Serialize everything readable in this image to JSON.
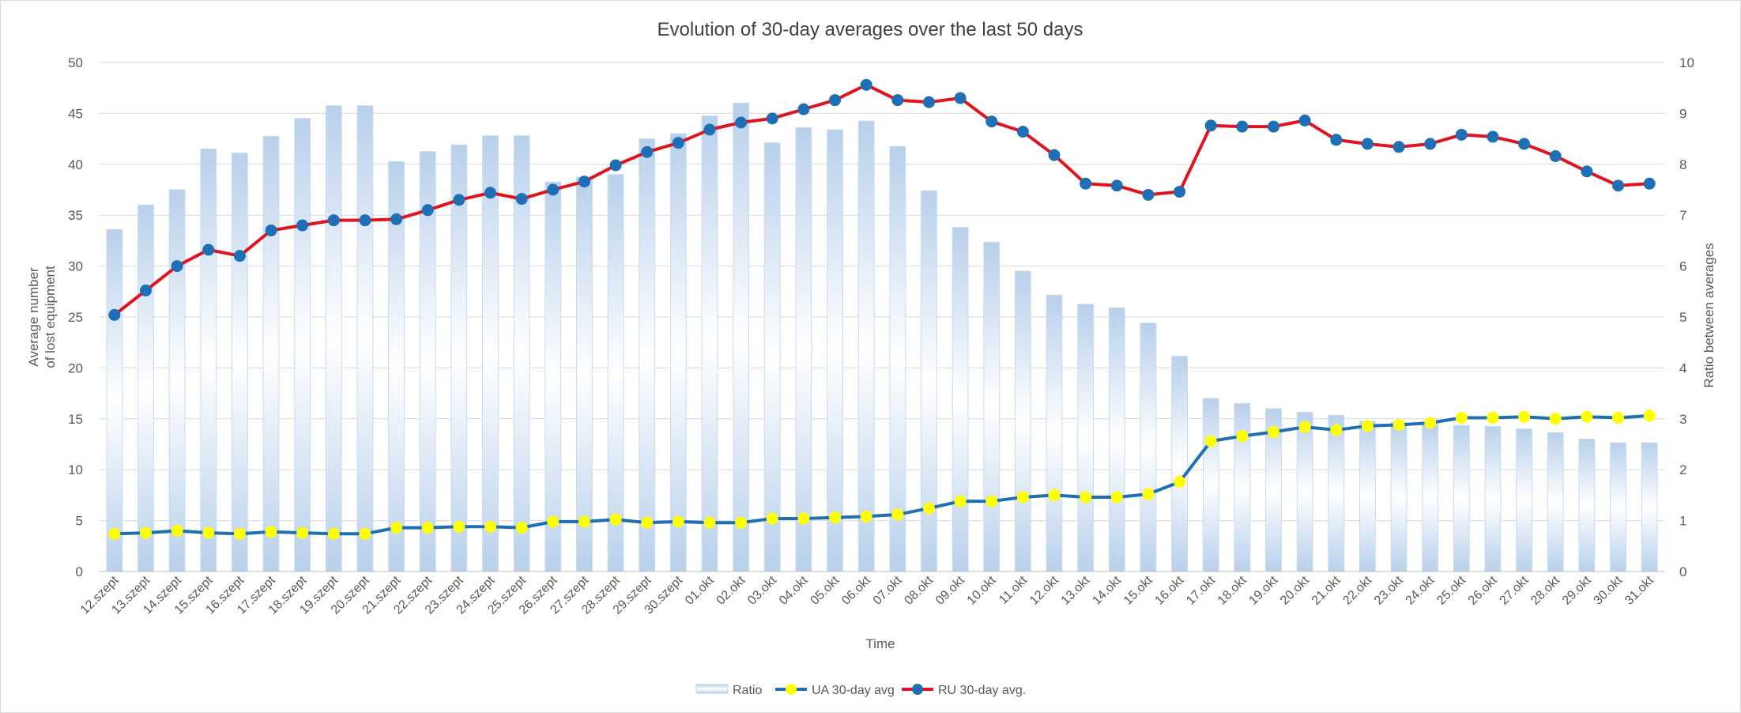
{
  "chart_data": {
    "type": "bar",
    "title": "Evolution of 30-day averages over the last 50 days",
    "xlabel": "Time",
    "ylabel": "Average number of lost equipment",
    "ylabel_lines": [
      "Average number",
      "of lost equipment"
    ],
    "y2label": "Ratio between averages",
    "ylim": [
      0,
      50
    ],
    "y2lim": [
      0,
      10
    ],
    "y_ticks": [
      "0",
      "5",
      "10",
      "15",
      "20",
      "25",
      "30",
      "35",
      "40",
      "45",
      "50"
    ],
    "y2_ticks": [
      "0",
      "1",
      "2",
      "3",
      "4",
      "5",
      "6",
      "7",
      "8",
      "9",
      "10"
    ],
    "grid": true,
    "legend_position": "bottom",
    "categories": [
      "12.szept",
      "13.szept",
      "14.szept",
      "15.szept",
      "16.szept",
      "17.szept",
      "18.szept",
      "19.szept",
      "20.szept",
      "21.szept",
      "22.szept",
      "23.szept",
      "24.szept",
      "25.szept",
      "26.szept",
      "27.szept",
      "28.szept",
      "29.szept",
      "30.szept",
      "01.okt",
      "02.okt",
      "03.okt",
      "04.okt",
      "05.okt",
      "06.okt",
      "07.okt",
      "08.okt",
      "09.okt",
      "10.okt",
      "11.okt",
      "12.okt",
      "13.okt",
      "14.okt",
      "15.okt",
      "16.okt",
      "17.okt",
      "18.okt",
      "19.okt",
      "20.okt",
      "21.okt",
      "22.okt",
      "23.okt",
      "24.okt",
      "25.okt",
      "26.okt",
      "27.okt",
      "28.okt",
      "29.okt",
      "30.okt",
      "31.okt"
    ],
    "series": [
      {
        "name": "Ratio",
        "type": "bar",
        "axis": "right",
        "color": "#b8d0eb",
        "values": [
          6.72,
          7.2,
          7.5,
          8.3,
          8.22,
          8.55,
          8.9,
          9.15,
          9.15,
          8.05,
          8.25,
          8.38,
          8.56,
          8.56,
          7.65,
          7.75,
          7.8,
          8.5,
          8.6,
          8.95,
          9.2,
          8.42,
          8.72,
          8.68,
          8.85,
          8.35,
          7.48,
          6.76,
          6.47,
          5.9,
          5.43,
          5.25,
          5.18,
          4.88,
          4.23,
          3.4,
          3.3,
          3.2,
          3.13,
          3.07,
          2.95,
          2.93,
          2.9,
          2.87,
          2.85,
          2.8,
          2.73,
          2.6,
          2.53,
          2.53
        ]
      },
      {
        "name": "UA 30-day avg",
        "type": "line",
        "axis": "left",
        "line_color": "#1f6fb5",
        "marker_color": "#ffff00",
        "values": [
          3.7,
          3.8,
          4.0,
          3.8,
          3.7,
          3.9,
          3.8,
          3.7,
          3.7,
          4.3,
          4.3,
          4.4,
          4.4,
          4.3,
          4.9,
          4.9,
          5.1,
          4.8,
          4.9,
          4.8,
          4.8,
          5.2,
          5.2,
          5.3,
          5.4,
          5.6,
          6.2,
          6.9,
          6.9,
          7.3,
          7.5,
          7.3,
          7.3,
          7.6,
          8.8,
          12.8,
          13.3,
          13.7,
          14.2,
          13.9,
          14.3,
          14.4,
          14.6,
          15.1,
          15.1,
          15.2,
          15.0,
          15.2,
          15.1,
          15.3
        ]
      },
      {
        "name": "RU 30-day avg.",
        "type": "line",
        "axis": "left",
        "line_color": "#e0141e",
        "marker_color": "#1f6fb5",
        "values": [
          25.2,
          27.6,
          30.0,
          31.6,
          31.0,
          33.5,
          34.0,
          34.5,
          34.5,
          34.6,
          35.5,
          36.5,
          37.2,
          36.6,
          37.5,
          38.3,
          39.9,
          41.2,
          42.1,
          43.4,
          44.1,
          44.5,
          45.4,
          46.3,
          47.8,
          46.3,
          46.1,
          46.5,
          44.2,
          43.2,
          40.9,
          38.1,
          37.9,
          37.0,
          37.3,
          43.8,
          43.7,
          43.7,
          44.3,
          42.4,
          42.0,
          41.7,
          42.0,
          42.9,
          42.7,
          42.0,
          40.8,
          39.3,
          37.9,
          38.1
        ]
      }
    ],
    "colors": {
      "axis_text": "#595959",
      "grid": "#d9d9d9",
      "title_text": "#404040"
    }
  }
}
